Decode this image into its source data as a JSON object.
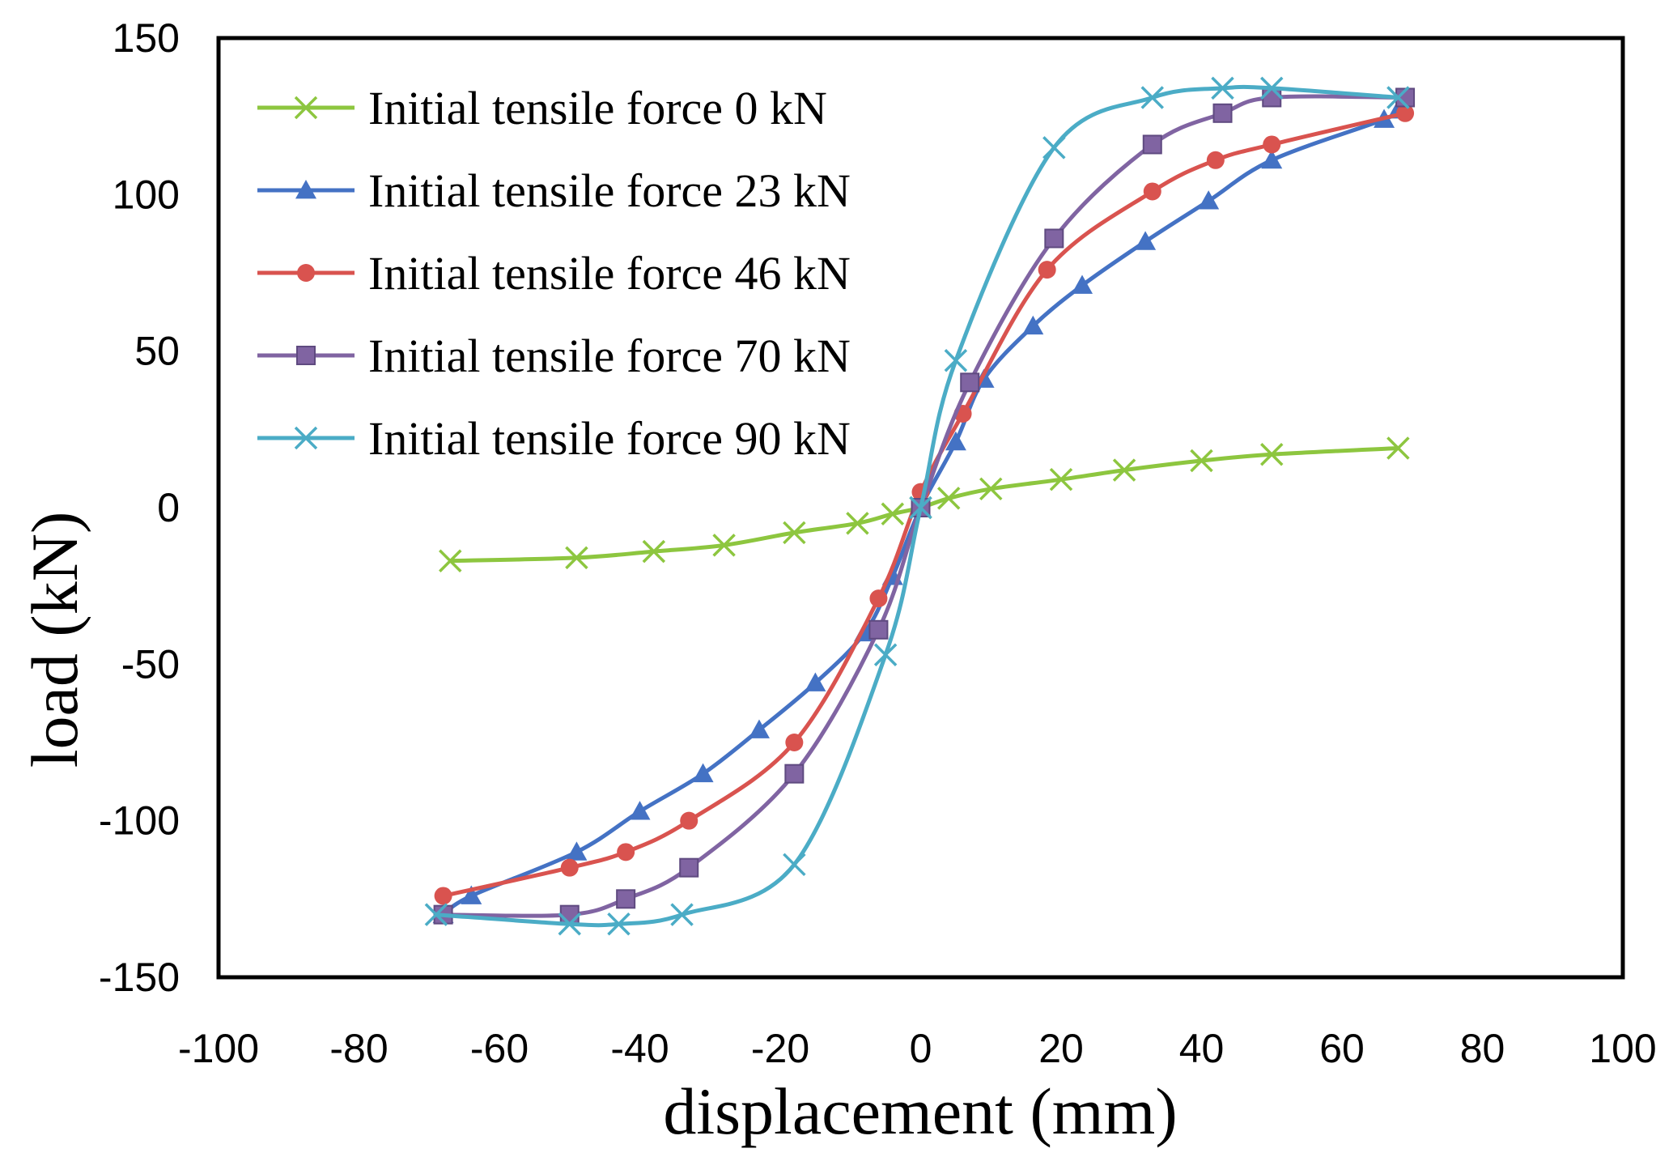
{
  "chart_data": {
    "type": "line",
    "title": "",
    "xlabel": "displacement (mm)",
    "ylabel": "load (kN)",
    "xlim": [
      -100,
      100
    ],
    "ylim": [
      -150,
      150
    ],
    "xticks": [
      -100,
      -80,
      -60,
      -40,
      -20,
      0,
      20,
      40,
      60,
      80,
      100
    ],
    "yticks": [
      150,
      100,
      50,
      0,
      -50,
      -100,
      -150
    ],
    "x_tick_labels": [
      "-100",
      "-80",
      "-60",
      "-40",
      "-20",
      "0",
      "20",
      "40",
      "60",
      "80",
      "100"
    ],
    "y_tick_labels": [
      "150",
      "100",
      "50",
      "0",
      "-50",
      "-100",
      "-150"
    ],
    "grid": false,
    "legend_position": "top-left",
    "series": [
      {
        "name": "Initial tensile force 0 kN",
        "color": "#8dc63f",
        "marker": "x",
        "x": [
          -67,
          -49,
          -38,
          -28,
          -18,
          -9,
          -4,
          0,
          4,
          10,
          20,
          29,
          40,
          50,
          68
        ],
        "y": [
          -17,
          -16,
          -14,
          -12,
          -8,
          -5,
          -2,
          0,
          3,
          6,
          9,
          12,
          15,
          17,
          19
        ]
      },
      {
        "name": "Initial tensile force 23 kN",
        "color": "#4472c4",
        "marker": "triangle",
        "x": [
          -68,
          -64,
          -49,
          -40,
          -31,
          -23,
          -15,
          -8,
          -4,
          0,
          5,
          9,
          16,
          23,
          32,
          41,
          50,
          66,
          68
        ],
        "y": [
          -130,
          -124,
          -110,
          -97,
          -85,
          -71,
          -56,
          -40,
          -22,
          0,
          21,
          41,
          58,
          71,
          85,
          98,
          111,
          124,
          127
        ]
      },
      {
        "name": "Initial tensile force 46 kN",
        "color": "#d9534f",
        "marker": "circle",
        "x": [
          -68,
          -50,
          -42,
          -33,
          -18,
          -6,
          0,
          6,
          18,
          33,
          42,
          50,
          69
        ],
        "y": [
          -124,
          -115,
          -110,
          -100,
          -75,
          -29,
          5,
          30,
          76,
          101,
          111,
          116,
          126
        ]
      },
      {
        "name": "Initial tensile force 70 kN",
        "color": "#8064a2",
        "marker": "square",
        "x": [
          -68,
          -50,
          -42,
          -33,
          -18,
          -6,
          0,
          7,
          19,
          33,
          43,
          50,
          69
        ],
        "y": [
          -130,
          -130,
          -125,
          -115,
          -85,
          -39,
          0,
          40,
          86,
          116,
          126,
          131,
          131
        ]
      },
      {
        "name": "Initial tensile force 90 kN",
        "color": "#4bacc6",
        "marker": "x",
        "x": [
          -69,
          -50,
          -43,
          -34,
          -18,
          -5,
          0,
          5,
          19,
          33,
          43,
          50,
          68
        ],
        "y": [
          -130,
          -133,
          -133,
          -130,
          -114,
          -47,
          0,
          47,
          115,
          131,
          134,
          134,
          131
        ]
      }
    ]
  }
}
